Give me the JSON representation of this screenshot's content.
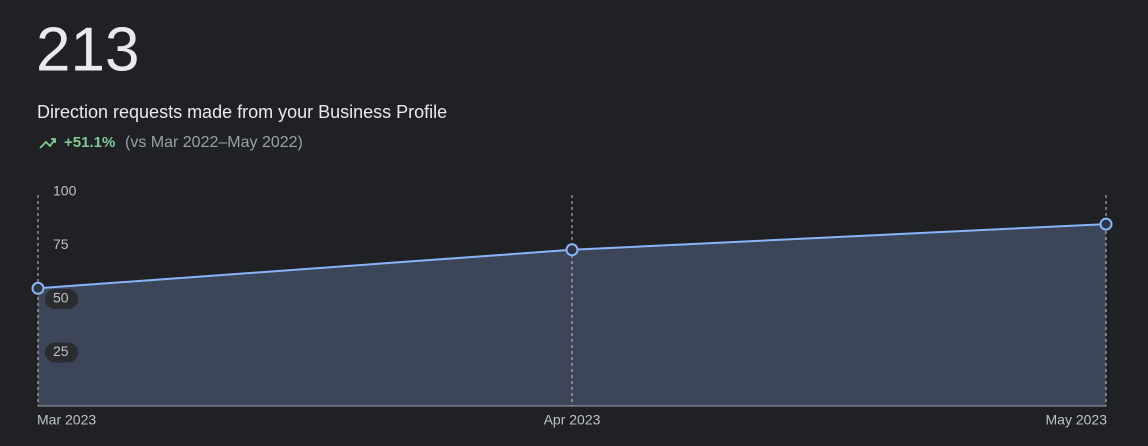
{
  "header": {
    "value": "213",
    "title": "Direction requests made from your Business Profile",
    "change": "+51.1%",
    "comparison": "(vs Mar 2022–May 2022)"
  },
  "chart_data": {
    "type": "area",
    "categories": [
      "Mar 2023",
      "Apr 2023",
      "May 2023"
    ],
    "values": [
      55,
      73,
      85
    ],
    "color": "#8ab4f8",
    "fill": "#3c4658",
    "ylim": [
      0,
      100
    ],
    "yticks": [
      25,
      50,
      75,
      100
    ],
    "grid": true
  }
}
